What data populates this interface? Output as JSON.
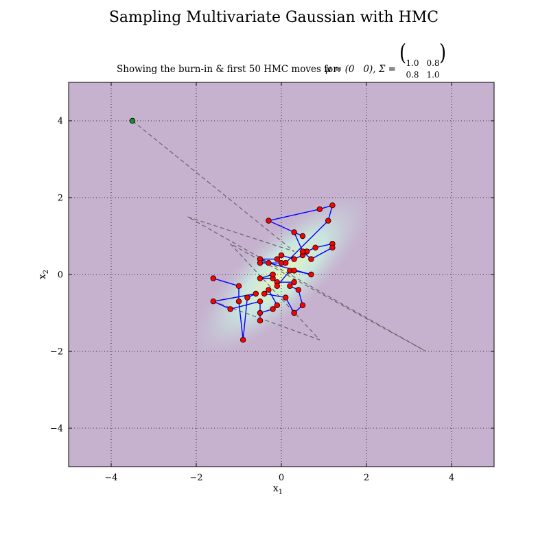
{
  "chart_data": {
    "type": "scatter",
    "title": "Sampling Multivariate Gaussian with HMC",
    "subtitle": {
      "prefix": "Showing the burn-in & first 50 HMC moves for: ",
      "mu": "μ = (0   0), Σ =",
      "sigma": [
        [
          "1.0",
          "0.8"
        ],
        [
          "0.8",
          "1.0"
        ]
      ]
    },
    "xlabel": "x",
    "xlabel_sub": "1",
    "ylabel": "x",
    "ylabel_sub": "2",
    "xlim": [
      -5,
      5
    ],
    "ylim": [
      -5,
      5
    ],
    "xticks": [
      -4,
      -2,
      0,
      2,
      4
    ],
    "yticks": [
      -4,
      -2,
      0,
      2,
      4
    ],
    "grid": true,
    "colors": {
      "background": "#c6b2cf",
      "density_core": "#e3f7c0",
      "density_mid": "#c9e7e0",
      "chain_line": "#0000ff",
      "sample_marker": "#ff0000",
      "start_marker": "#1a8a2c",
      "burnin_line": "#555555"
    },
    "density": {
      "mean": [
        0,
        0
      ],
      "cov": [
        [
          1.0,
          0.8
        ],
        [
          0.8,
          1.0
        ]
      ]
    },
    "start_point": {
      "x": -3.5,
      "y": 4.0
    },
    "burnin_path": [
      {
        "x": -3.5,
        "y": 4.0
      },
      {
        "x": 0.3,
        "y": 0.6
      },
      {
        "x": -2.2,
        "y": 1.5
      },
      {
        "x": 3.4,
        "y": -2.0
      },
      {
        "x": -1.2,
        "y": 0.8
      },
      {
        "x": 0.9,
        "y": -1.7
      },
      {
        "x": -1.6,
        "y": -0.7
      }
    ],
    "samples": [
      {
        "x": -1.6,
        "y": -0.1
      },
      {
        "x": -1.0,
        "y": -0.3
      },
      {
        "x": -1.0,
        "y": -0.7
      },
      {
        "x": -0.9,
        "y": -1.7
      },
      {
        "x": -0.8,
        "y": -0.6
      },
      {
        "x": -0.6,
        "y": -0.5
      },
      {
        "x": -1.6,
        "y": -0.7
      },
      {
        "x": -1.2,
        "y": -0.9
      },
      {
        "x": -0.5,
        "y": -0.7
      },
      {
        "x": -0.5,
        "y": -1.2
      },
      {
        "x": -0.5,
        "y": -1.0
      },
      {
        "x": -0.2,
        "y": -0.9
      },
      {
        "x": -0.1,
        "y": -0.8
      },
      {
        "x": -0.3,
        "y": -0.4
      },
      {
        "x": -0.4,
        "y": -0.5
      },
      {
        "x": 0.1,
        "y": -0.6
      },
      {
        "x": 0.3,
        "y": -1.0
      },
      {
        "x": 0.5,
        "y": -0.8
      },
      {
        "x": 0.4,
        "y": -0.4
      },
      {
        "x": 0.2,
        "y": -0.3
      },
      {
        "x": 0.3,
        "y": -0.2
      },
      {
        "x": -0.1,
        "y": -0.2
      },
      {
        "x": -0.2,
        "y": -0.1
      },
      {
        "x": -0.5,
        "y": -0.1
      },
      {
        "x": -0.2,
        "y": 0.0
      },
      {
        "x": -0.1,
        "y": -0.3
      },
      {
        "x": 0.2,
        "y": 0.1
      },
      {
        "x": 0.3,
        "y": 0.1
      },
      {
        "x": 0.7,
        "y": 0.0
      },
      {
        "x": -0.3,
        "y": 0.3
      },
      {
        "x": -0.5,
        "y": 0.4
      },
      {
        "x": -0.1,
        "y": 0.4
      },
      {
        "x": 0.0,
        "y": 0.5
      },
      {
        "x": 0.3,
        "y": 0.4
      },
      {
        "x": 0.5,
        "y": 0.5
      },
      {
        "x": 0.6,
        "y": 0.6
      },
      {
        "x": 0.8,
        "y": 0.7
      },
      {
        "x": 1.2,
        "y": 0.8
      },
      {
        "x": 1.2,
        "y": 0.7
      },
      {
        "x": 0.7,
        "y": 0.4
      },
      {
        "x": 0.5,
        "y": 0.6
      },
      {
        "x": 0.3,
        "y": 1.1
      },
      {
        "x": 0.5,
        "y": 1.0
      },
      {
        "x": -0.3,
        "y": 1.4
      },
      {
        "x": 0.9,
        "y": 1.7
      },
      {
        "x": 1.2,
        "y": 1.8
      },
      {
        "x": 1.1,
        "y": 1.4
      },
      {
        "x": 0.1,
        "y": 0.3
      },
      {
        "x": -0.5,
        "y": 0.3
      },
      {
        "x": 0.0,
        "y": 0.3
      }
    ]
  }
}
